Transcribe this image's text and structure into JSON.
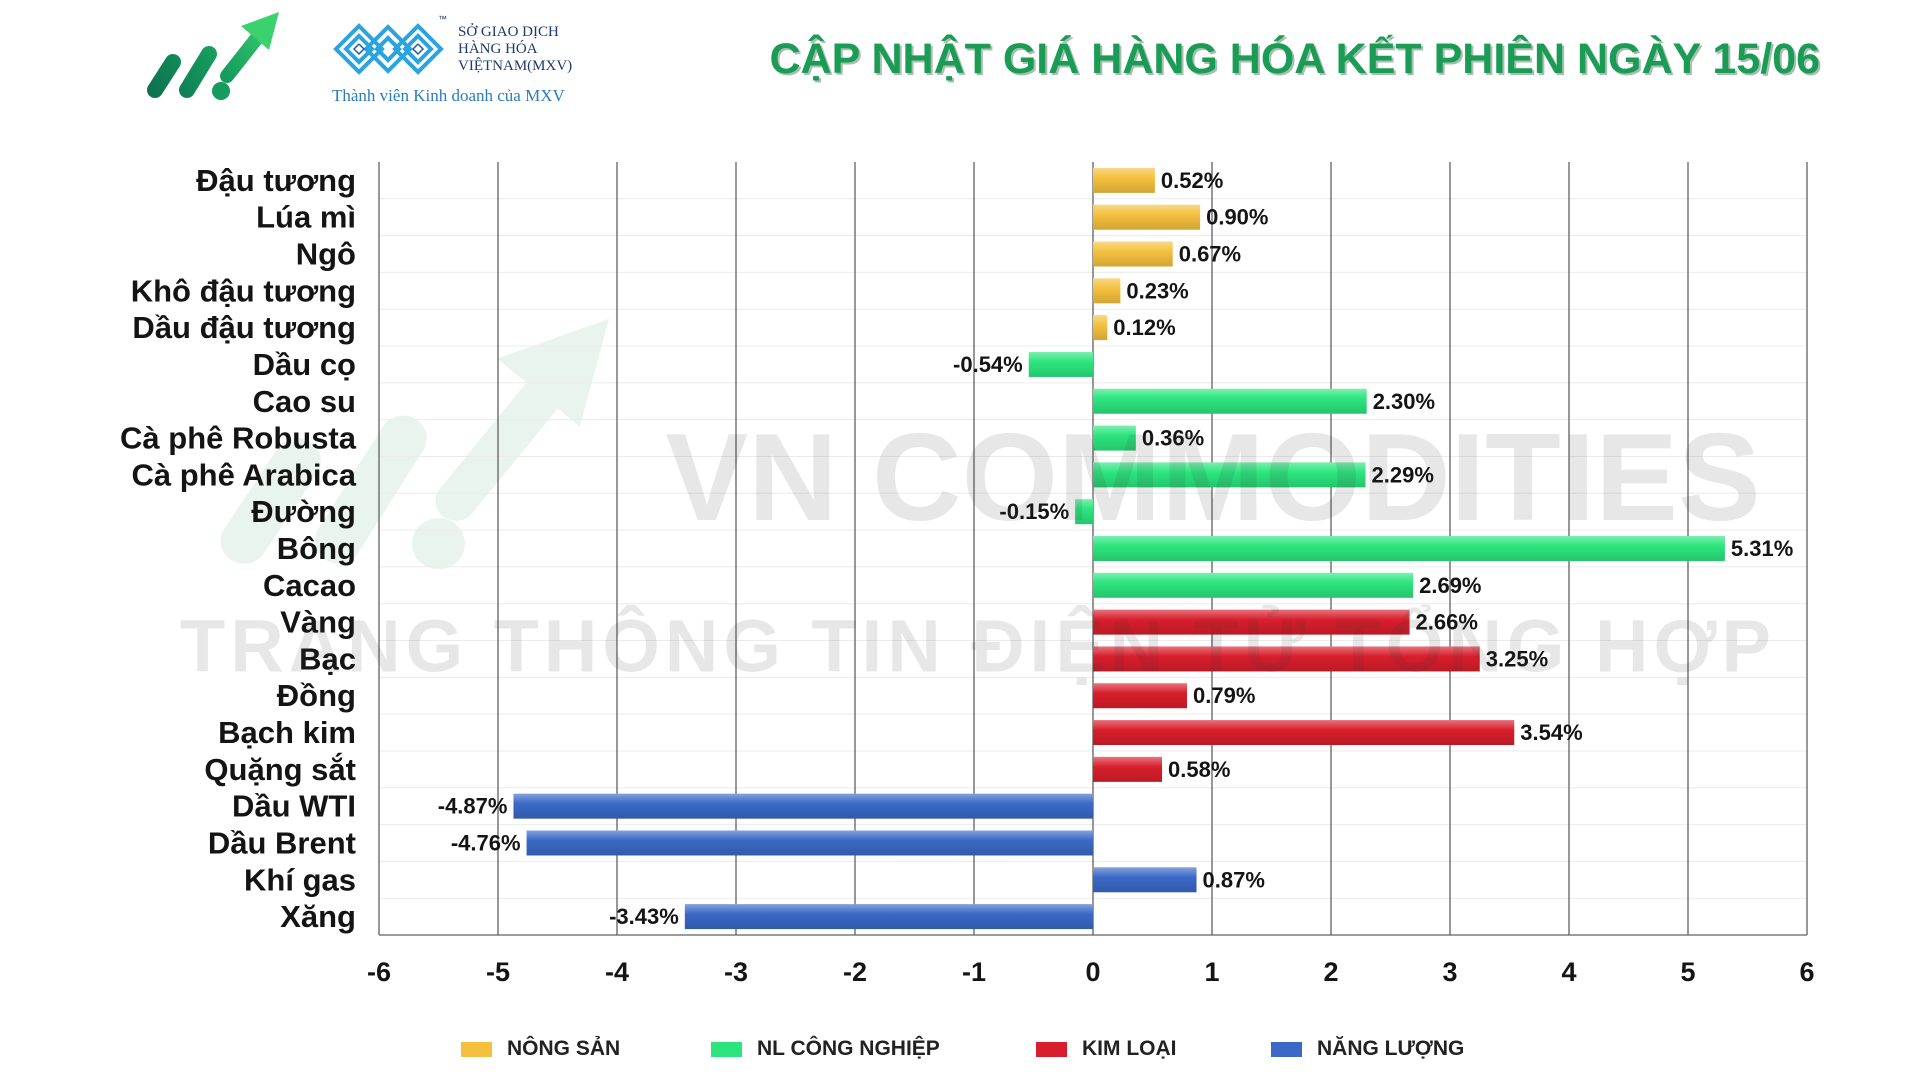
{
  "header": {
    "logo_icon": "growth-arrow-logo-icon",
    "mxv": {
      "icon": "mxv-diamond-logo-icon",
      "trademark": "™",
      "line1": "SỞ GIAO DỊCH",
      "line2": "HÀNG HÓA",
      "line3": "VIỆTNAM(MXV)",
      "tagline": "Thành viên Kinh doanh của MXV"
    }
  },
  "watermark": {
    "icon": "watermark-logo-icon",
    "line1": "VN COMMODITIES",
    "line2": "TRANG THÔNG TIN ĐIỆN TỬ TỔNG HỢP"
  },
  "chart_data": {
    "type": "bar",
    "orientation": "horizontal",
    "title": "CẬP NHẬT GIÁ HÀNG HÓA KẾT PHIÊN NGÀY 15/06",
    "xlabel": "",
    "ylabel": "",
    "categories": [
      "Đậu tương",
      "Lúa mì",
      "Ngô",
      "Khô đậu tương",
      "Dầu đậu tương",
      "Dầu cọ",
      "Cao su",
      "Cà phê Robusta",
      "Cà phê Arabica",
      "Đường",
      "Bông",
      "Cacao",
      "Vàng",
      "Bạc",
      "Đồng",
      "Bạch kim",
      "Quặng sắt",
      "Dầu WTI",
      "Dầu Brent",
      "Khí gas",
      "Xăng"
    ],
    "values": [
      0.52,
      0.9,
      0.67,
      0.23,
      0.12,
      -0.54,
      2.3,
      0.36,
      2.29,
      -0.15,
      5.31,
      2.69,
      2.66,
      3.25,
      0.79,
      3.54,
      0.58,
      -4.87,
      -4.76,
      0.87,
      -3.43
    ],
    "value_labels": [
      "0.52%",
      "0.90%",
      "0.67%",
      "0.23%",
      "0.12%",
      "-0.54%",
      "2.30%",
      "0.36%",
      "2.29%",
      "-0.15%",
      "5.31%",
      "2.69%",
      "2.66%",
      "3.25%",
      "0.79%",
      "3.54%",
      "0.58%",
      "-4.87%",
      "-4.76%",
      "0.87%",
      "-3.43%"
    ],
    "category_series": [
      0,
      0,
      0,
      0,
      0,
      1,
      1,
      1,
      1,
      1,
      1,
      1,
      2,
      2,
      2,
      2,
      2,
      3,
      3,
      3,
      3
    ],
    "series": [
      {
        "name": "NÔNG SẢN",
        "color": "#F4C03E"
      },
      {
        "name": "NL CÔNG NGHIỆP",
        "color": "#2CE57E"
      },
      {
        "name": "KIM LOẠI",
        "color": "#D81E2C"
      },
      {
        "name": "NĂNG LƯỢNG",
        "color": "#3A69C6"
      }
    ],
    "xlim": [
      -6,
      6
    ],
    "x_ticks": [
      -6,
      -5,
      -4,
      -3,
      -2,
      -1,
      0,
      1,
      2,
      3,
      4,
      5,
      6
    ],
    "tick_labels": [
      "-6",
      "-5",
      "-4",
      "-3",
      "-2",
      "-1",
      "0",
      "1",
      "2",
      "3",
      "4",
      "5",
      "6"
    ],
    "grid": true,
    "legend_position": "bottom"
  }
}
